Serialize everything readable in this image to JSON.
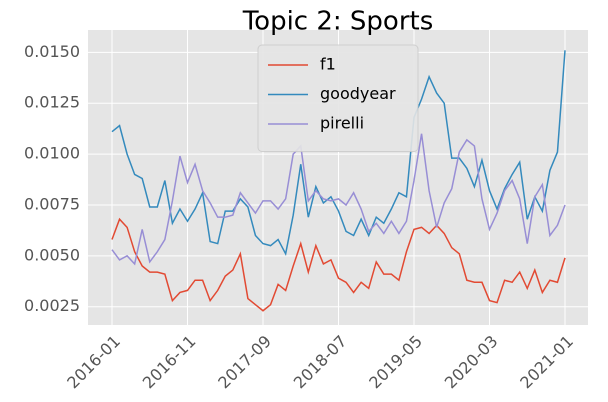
{
  "chart_data": {
    "type": "line",
    "title": "Topic 2: Sports",
    "x": [
      "2016-01",
      "2016-02",
      "2016-03",
      "2016-04",
      "2016-05",
      "2016-06",
      "2016-07",
      "2016-08",
      "2016-09",
      "2016-10",
      "2016-11",
      "2016-12",
      "2017-01",
      "2017-02",
      "2017-03",
      "2017-04",
      "2017-05",
      "2017-06",
      "2017-07",
      "2017-08",
      "2017-09",
      "2017-10",
      "2017-11",
      "2017-12",
      "2018-01",
      "2018-02",
      "2018-03",
      "2018-04",
      "2018-05",
      "2018-06",
      "2018-07",
      "2018-08",
      "2018-09",
      "2018-10",
      "2018-11",
      "2018-12",
      "2019-01",
      "2019-02",
      "2019-03",
      "2019-04",
      "2019-05",
      "2019-06",
      "2019-07",
      "2019-08",
      "2019-09",
      "2019-10",
      "2019-11",
      "2019-12",
      "2020-01",
      "2020-02",
      "2020-03",
      "2020-04",
      "2020-05",
      "2020-06",
      "2020-07",
      "2020-08",
      "2020-09",
      "2020-10",
      "2020-11",
      "2020-12",
      "2021-01"
    ],
    "xticks": [
      "2016-01",
      "2016-11",
      "2017-09",
      "2018-07",
      "2019-05",
      "2020-03",
      "2021-01"
    ],
    "series": [
      {
        "name": "f1",
        "color": "#E24A33",
        "values": [
          0.0058,
          0.0068,
          0.0064,
          0.0052,
          0.0045,
          0.0042,
          0.0042,
          0.0041,
          0.0028,
          0.0032,
          0.0033,
          0.0038,
          0.0038,
          0.0028,
          0.0033,
          0.004,
          0.0043,
          0.0051,
          0.0029,
          0.0026,
          0.0023,
          0.0026,
          0.0036,
          0.0033,
          0.0045,
          0.0056,
          0.0042,
          0.0055,
          0.0046,
          0.0048,
          0.0039,
          0.0037,
          0.0032,
          0.0037,
          0.0034,
          0.0047,
          0.0041,
          0.0041,
          0.0038,
          0.0052,
          0.0063,
          0.0064,
          0.0061,
          0.0065,
          0.0061,
          0.0054,
          0.0051,
          0.0038,
          0.0037,
          0.0037,
          0.0028,
          0.0027,
          0.0038,
          0.0037,
          0.0042,
          0.0034,
          0.0043,
          0.0032,
          0.0038,
          0.0037,
          0.0049
        ]
      },
      {
        "name": "goodyear",
        "color": "#348ABD",
        "values": [
          0.0111,
          0.0114,
          0.01,
          0.009,
          0.0088,
          0.0074,
          0.0074,
          0.0087,
          0.0066,
          0.0073,
          0.0067,
          0.0073,
          0.0081,
          0.0057,
          0.0056,
          0.0072,
          0.0072,
          0.0078,
          0.0074,
          0.006,
          0.0056,
          0.0055,
          0.0058,
          0.0051,
          0.007,
          0.0095,
          0.0069,
          0.0084,
          0.0076,
          0.0079,
          0.0072,
          0.0062,
          0.006,
          0.0068,
          0.006,
          0.0069,
          0.0066,
          0.0073,
          0.0081,
          0.0079,
          0.0118,
          0.0127,
          0.0138,
          0.013,
          0.0125,
          0.0098,
          0.0098,
          0.0093,
          0.0084,
          0.0097,
          0.0082,
          0.0073,
          0.0083,
          0.009,
          0.0096,
          0.0068,
          0.0079,
          0.0072,
          0.0092,
          0.0101,
          0.0151
        ]
      },
      {
        "name": "pirelli",
        "color": "#988ED5",
        "values": [
          0.0053,
          0.0048,
          0.005,
          0.0046,
          0.0063,
          0.0047,
          0.0052,
          0.0058,
          0.0077,
          0.0099,
          0.0086,
          0.0095,
          0.0082,
          0.0076,
          0.0069,
          0.0069,
          0.007,
          0.0081,
          0.0076,
          0.0071,
          0.0077,
          0.0077,
          0.0073,
          0.0078,
          0.01,
          0.0104,
          0.0077,
          0.0082,
          0.0078,
          0.0077,
          0.0078,
          0.0075,
          0.0081,
          0.0073,
          0.0062,
          0.0066,
          0.0061,
          0.0067,
          0.0061,
          0.0067,
          0.0087,
          0.011,
          0.0082,
          0.0064,
          0.0076,
          0.0083,
          0.0101,
          0.0107,
          0.0104,
          0.0078,
          0.0063,
          0.0071,
          0.0082,
          0.0087,
          0.0078,
          0.0056,
          0.0079,
          0.0085,
          0.006,
          0.0065,
          0.0075
        ]
      }
    ],
    "ylim": [
      0.0016,
      0.0161
    ],
    "yticks": [
      0.0025,
      {
        "value": 0.005,
        "label": "0.0050"
      },
      0.0075,
      {
        "value": 0.01,
        "label": "0.0100"
      },
      0.0125,
      {
        "value": 0.015,
        "label": "0.0150"
      }
    ],
    "grid": true,
    "legend": "upper center"
  }
}
